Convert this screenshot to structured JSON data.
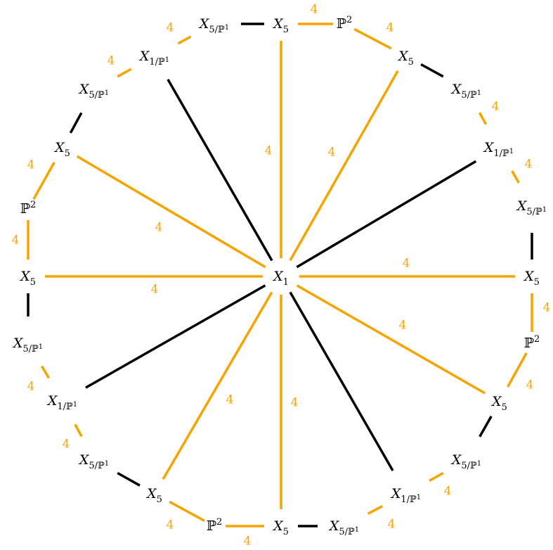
{
  "colors": {
    "orange": "#F5A400",
    "black": "#000000",
    "background": "#FFFFFF"
  },
  "nodes": {
    "center": {
      "main": "X",
      "sub": "1",
      "sub_script": "",
      "sup": ""
    },
    "p_top": {
      "main": "X",
      "sub": "5",
      "sub_script": "",
      "sup": ""
    },
    "p_r1": {
      "main": "ℙ",
      "sub": "",
      "sub_script": "",
      "sup": "2"
    },
    "p_r2": {
      "main": "X",
      "sub": "5",
      "sub_script": "",
      "sup": ""
    },
    "p_r3": {
      "main": "X",
      "sub": "5/ℙ",
      "sub_script": "1",
      "sup": ""
    },
    "p_r4": {
      "main": "X",
      "sub": "1/ℙ",
      "sub_script": "1",
      "sup": ""
    },
    "p_r5": {
      "main": "X",
      "sub": "5/ℙ",
      "sub_script": "1",
      "sup": ""
    },
    "p_right": {
      "main": "X",
      "sub": "5",
      "sub_script": "",
      "sup": ""
    },
    "p_r7": {
      "main": "ℙ",
      "sub": "",
      "sub_script": "",
      "sup": "2"
    },
    "p_r8": {
      "main": "X",
      "sub": "5",
      "sub_script": "",
      "sup": ""
    },
    "p_r9": {
      "main": "X",
      "sub": "5/ℙ",
      "sub_script": "1",
      "sup": ""
    },
    "p_r10": {
      "main": "X",
      "sub": "1/ℙ",
      "sub_script": "1",
      "sup": ""
    },
    "p_r11": {
      "main": "X",
      "sub": "5/ℙ",
      "sub_script": "1",
      "sup": ""
    },
    "p_bottom": {
      "main": "X",
      "sub": "5",
      "sub_script": "",
      "sup": ""
    },
    "p_l1": {
      "main": "ℙ",
      "sub": "",
      "sub_script": "",
      "sup": "2"
    },
    "p_l2": {
      "main": "X",
      "sub": "5",
      "sub_script": "",
      "sup": ""
    },
    "p_l3": {
      "main": "X",
      "sub": "5/ℙ",
      "sub_script": "1",
      "sup": ""
    },
    "p_l4": {
      "main": "X",
      "sub": "1/ℙ",
      "sub_script": "1",
      "sup": ""
    },
    "p_l5": {
      "main": "X",
      "sub": "5/ℙ",
      "sub_script": "1",
      "sup": ""
    },
    "p_left": {
      "main": "X",
      "sub": "5",
      "sub_script": "",
      "sup": ""
    },
    "p_l7": {
      "main": "ℙ",
      "sub": "",
      "sub_script": "",
      "sup": "2"
    },
    "p_l8": {
      "main": "X",
      "sub": "5",
      "sub_script": "",
      "sup": ""
    },
    "p_l9": {
      "main": "X",
      "sub": "5/ℙ",
      "sub_script": "1",
      "sup": ""
    },
    "p_l10": {
      "main": "X",
      "sub": "1/ℙ",
      "sub_script": "1",
      "sup": ""
    },
    "p_l11": {
      "main": "X",
      "sub": "5/ℙ",
      "sub_script": "1",
      "sup": ""
    }
  },
  "edges": [
    {
      "from": "p_top",
      "to": "p_r1",
      "color": "orange",
      "label": "4"
    },
    {
      "from": "p_r1",
      "to": "p_r2",
      "color": "orange",
      "label": "4"
    },
    {
      "from": "p_r2",
      "to": "p_r3",
      "color": "black",
      "label": ""
    },
    {
      "from": "p_r3",
      "to": "p_r4",
      "color": "orange",
      "label": "4"
    },
    {
      "from": "p_r4",
      "to": "p_r5",
      "color": "orange",
      "label": "4"
    },
    {
      "from": "p_r5",
      "to": "p_right",
      "color": "black",
      "label": ""
    },
    {
      "from": "p_right",
      "to": "p_r7",
      "color": "orange",
      "label": "4"
    },
    {
      "from": "p_r7",
      "to": "p_r8",
      "color": "orange",
      "label": "4"
    },
    {
      "from": "p_r8",
      "to": "p_r9",
      "color": "black",
      "label": ""
    },
    {
      "from": "p_r9",
      "to": "p_r10",
      "color": "orange",
      "label": "4"
    },
    {
      "from": "p_r10",
      "to": "p_r11",
      "color": "orange",
      "label": "4"
    },
    {
      "from": "p_r11",
      "to": "p_bottom",
      "color": "black",
      "label": ""
    },
    {
      "from": "p_bottom",
      "to": "p_l1",
      "color": "orange",
      "label": "4"
    },
    {
      "from": "p_l1",
      "to": "p_l2",
      "color": "orange",
      "label": "4"
    },
    {
      "from": "p_l2",
      "to": "p_l3",
      "color": "black",
      "label": ""
    },
    {
      "from": "p_l3",
      "to": "p_l4",
      "color": "orange",
      "label": "4"
    },
    {
      "from": "p_l4",
      "to": "p_l5",
      "color": "orange",
      "label": "4"
    },
    {
      "from": "p_l5",
      "to": "p_left",
      "color": "black",
      "label": ""
    },
    {
      "from": "p_left",
      "to": "p_l7",
      "color": "orange",
      "label": "4"
    },
    {
      "from": "p_l7",
      "to": "p_l8",
      "color": "orange",
      "label": "4"
    },
    {
      "from": "p_l8",
      "to": "p_l9",
      "color": "black",
      "label": ""
    },
    {
      "from": "p_l9",
      "to": "p_l10",
      "color": "orange",
      "label": "4"
    },
    {
      "from": "p_l10",
      "to": "p_l11",
      "color": "orange",
      "label": "4"
    },
    {
      "from": "p_l11",
      "to": "p_top",
      "color": "black",
      "label": ""
    },
    {
      "from": "center",
      "to": "p_top",
      "color": "orange",
      "label": "4"
    },
    {
      "from": "center",
      "to": "p_r2",
      "color": "orange",
      "label": "4"
    },
    {
      "from": "center",
      "to": "p_r4",
      "color": "black",
      "label": ""
    },
    {
      "from": "center",
      "to": "p_right",
      "color": "orange",
      "label": "4"
    },
    {
      "from": "center",
      "to": "p_r8",
      "color": "orange",
      "label": "4"
    },
    {
      "from": "center",
      "to": "p_r10",
      "color": "black",
      "label": ""
    },
    {
      "from": "center",
      "to": "p_bottom",
      "color": "orange",
      "label": "4"
    },
    {
      "from": "center",
      "to": "p_l2",
      "color": "orange",
      "label": "4"
    },
    {
      "from": "center",
      "to": "p_l4",
      "color": "black",
      "label": ""
    },
    {
      "from": "center",
      "to": "p_left",
      "color": "orange",
      "label": "4"
    },
    {
      "from": "center",
      "to": "p_l8",
      "color": "orange",
      "label": "4"
    },
    {
      "from": "center",
      "to": "p_l10",
      "color": "black",
      "label": ""
    }
  ]
}
